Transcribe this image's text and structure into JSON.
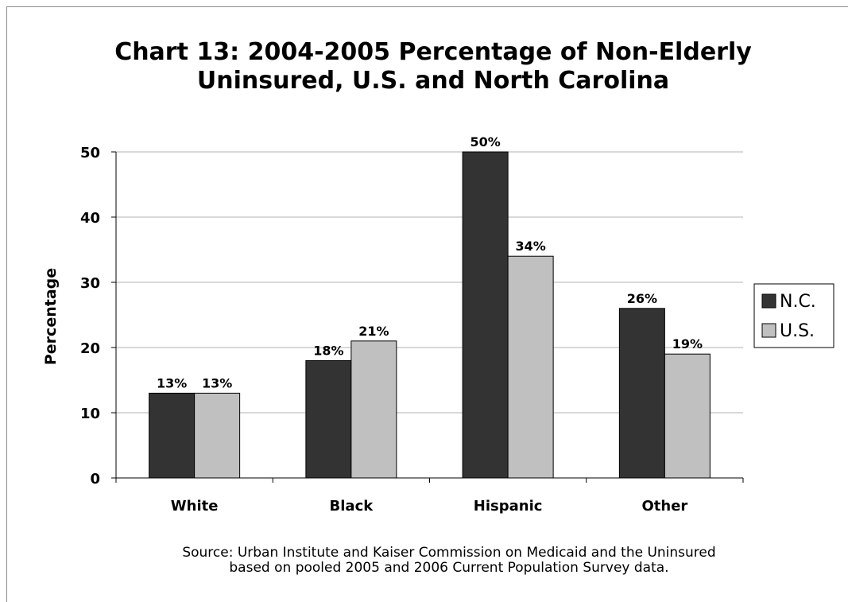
{
  "chart_data": {
    "type": "bar",
    "title_line1": "Chart 13: 2004-2005 Percentage of Non-Elderly",
    "title_line2": "Uninsured, U.S. and North Carolina",
    "ylabel": "Percentage",
    "xlabel": "",
    "ylim": [
      0,
      50
    ],
    "yticks": [
      0,
      10,
      20,
      30,
      40,
      50
    ],
    "grid": true,
    "legend_position": "right",
    "categories": [
      "White",
      "Black",
      "Hispanic",
      "Other"
    ],
    "series": [
      {
        "name": "N.C.",
        "values": [
          13,
          18,
          50,
          26
        ],
        "labels": [
          "13%",
          "18%",
          "50%",
          "26%"
        ],
        "color": "#333333"
      },
      {
        "name": "U.S.",
        "values": [
          13,
          21,
          34,
          19
        ],
        "labels": [
          "13%",
          "21%",
          "34%",
          "19%"
        ],
        "color": "#c0c0c0"
      }
    ]
  },
  "source_line1": "Source: Urban Institute and Kaiser Commission on Medicaid and the Uninsured",
  "source_line2": "based on pooled 2005 and 2006 Current Population Survey data."
}
